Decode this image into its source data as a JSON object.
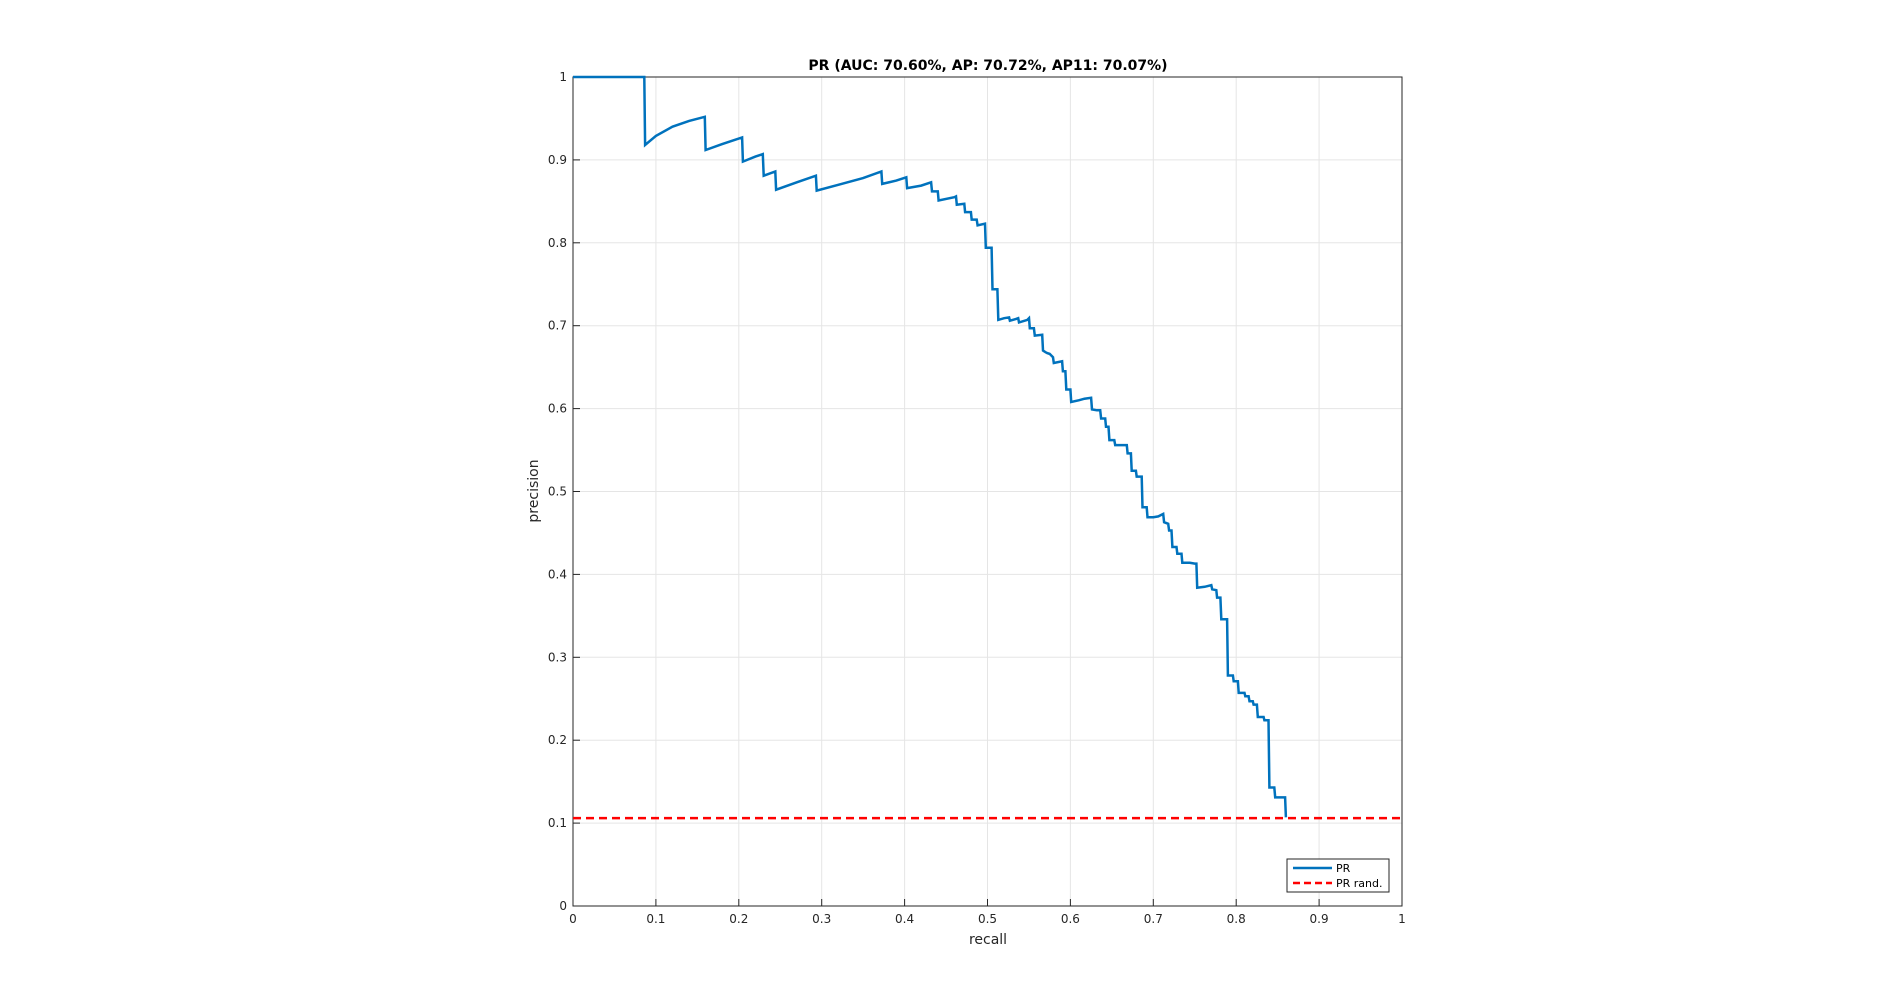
{
  "chart_data": {
    "type": "line",
    "title": "PR (AUC: 70.60%, AP: 70.72%, AP11: 70.07%)",
    "xlabel": "recall",
    "ylabel": "precision",
    "xlim": [
      0,
      1
    ],
    "ylim": [
      0,
      1
    ],
    "grid": true,
    "legend_position": "bottom-right",
    "xticks": [
      "0",
      "0.1",
      "0.2",
      "0.3",
      "0.4",
      "0.5",
      "0.6",
      "0.7",
      "0.8",
      "0.9",
      "1"
    ],
    "yticks": [
      "0",
      "0.1",
      "0.2",
      "0.3",
      "0.4",
      "0.5",
      "0.6",
      "0.7",
      "0.8",
      "0.9",
      "1"
    ],
    "series": [
      {
        "name": "PR",
        "color": "#0072BD",
        "style": "solid",
        "points": [
          [
            0,
            1.0
          ],
          [
            0.086,
            1.0
          ],
          [
            0.087,
            0.918
          ],
          [
            0.1,
            0.929
          ],
          [
            0.12,
            0.94
          ],
          [
            0.14,
            0.947
          ],
          [
            0.159,
            0.952
          ],
          [
            0.16,
            0.912
          ],
          [
            0.18,
            0.919
          ],
          [
            0.204,
            0.927
          ],
          [
            0.205,
            0.898
          ],
          [
            0.22,
            0.904
          ],
          [
            0.229,
            0.907
          ],
          [
            0.23,
            0.881
          ],
          [
            0.244,
            0.886
          ],
          [
            0.245,
            0.864
          ],
          [
            0.27,
            0.873
          ],
          [
            0.293,
            0.881
          ],
          [
            0.294,
            0.863
          ],
          [
            0.32,
            0.87
          ],
          [
            0.35,
            0.878
          ],
          [
            0.372,
            0.886
          ],
          [
            0.373,
            0.871
          ],
          [
            0.39,
            0.875
          ],
          [
            0.402,
            0.879
          ],
          [
            0.403,
            0.866
          ],
          [
            0.42,
            0.869
          ],
          [
            0.432,
            0.873
          ],
          [
            0.433,
            0.862
          ],
          [
            0.44,
            0.862
          ],
          [
            0.441,
            0.851
          ],
          [
            0.46,
            0.855
          ],
          [
            0.462,
            0.856
          ],
          [
            0.463,
            0.846
          ],
          [
            0.472,
            0.847
          ],
          [
            0.473,
            0.837
          ],
          [
            0.48,
            0.837
          ],
          [
            0.481,
            0.828
          ],
          [
            0.487,
            0.828
          ],
          [
            0.488,
            0.821
          ],
          [
            0.497,
            0.823
          ],
          [
            0.498,
            0.794
          ],
          [
            0.505,
            0.794
          ],
          [
            0.506,
            0.744
          ],
          [
            0.512,
            0.744
          ],
          [
            0.513,
            0.707
          ],
          [
            0.52,
            0.709
          ],
          [
            0.526,
            0.71
          ],
          [
            0.527,
            0.706
          ],
          [
            0.534,
            0.708
          ],
          [
            0.537,
            0.709
          ],
          [
            0.538,
            0.704
          ],
          [
            0.548,
            0.707
          ],
          [
            0.55,
            0.709
          ],
          [
            0.551,
            0.697
          ],
          [
            0.556,
            0.697
          ],
          [
            0.557,
            0.688
          ],
          [
            0.566,
            0.689
          ],
          [
            0.567,
            0.67
          ],
          [
            0.57,
            0.668
          ],
          [
            0.572,
            0.667
          ],
          [
            0.575,
            0.666
          ],
          [
            0.577,
            0.664
          ],
          [
            0.579,
            0.662
          ],
          [
            0.58,
            0.655
          ],
          [
            0.59,
            0.657
          ],
          [
            0.591,
            0.645
          ],
          [
            0.594,
            0.645
          ],
          [
            0.595,
            0.623
          ],
          [
            0.6,
            0.623
          ],
          [
            0.601,
            0.608
          ],
          [
            0.61,
            0.61
          ],
          [
            0.617,
            0.612
          ],
          [
            0.625,
            0.613
          ],
          [
            0.626,
            0.599
          ],
          [
            0.632,
            0.598
          ],
          [
            0.636,
            0.598
          ],
          [
            0.637,
            0.588
          ],
          [
            0.642,
            0.588
          ],
          [
            0.643,
            0.578
          ],
          [
            0.646,
            0.578
          ],
          [
            0.647,
            0.562
          ],
          [
            0.653,
            0.562
          ],
          [
            0.654,
            0.556
          ],
          [
            0.66,
            0.556
          ],
          [
            0.668,
            0.556
          ],
          [
            0.669,
            0.546
          ],
          [
            0.673,
            0.546
          ],
          [
            0.674,
            0.525
          ],
          [
            0.679,
            0.525
          ],
          [
            0.68,
            0.518
          ],
          [
            0.686,
            0.518
          ],
          [
            0.687,
            0.481
          ],
          [
            0.692,
            0.481
          ],
          [
            0.693,
            0.469
          ],
          [
            0.7,
            0.469
          ],
          [
            0.706,
            0.47
          ],
          [
            0.712,
            0.473
          ],
          [
            0.713,
            0.463
          ],
          [
            0.718,
            0.461
          ],
          [
            0.719,
            0.453
          ],
          [
            0.722,
            0.453
          ],
          [
            0.723,
            0.433
          ],
          [
            0.728,
            0.433
          ],
          [
            0.729,
            0.425
          ],
          [
            0.734,
            0.425
          ],
          [
            0.735,
            0.414
          ],
          [
            0.744,
            0.414
          ],
          [
            0.75,
            0.413
          ],
          [
            0.752,
            0.413
          ],
          [
            0.753,
            0.384
          ],
          [
            0.762,
            0.385
          ],
          [
            0.77,
            0.387
          ],
          [
            0.771,
            0.382
          ],
          [
            0.776,
            0.381
          ],
          [
            0.777,
            0.372
          ],
          [
            0.781,
            0.372
          ],
          [
            0.782,
            0.346
          ],
          [
            0.789,
            0.346
          ],
          [
            0.79,
            0.278
          ],
          [
            0.796,
            0.278
          ],
          [
            0.797,
            0.271
          ],
          [
            0.802,
            0.271
          ],
          [
            0.803,
            0.257
          ],
          [
            0.81,
            0.257
          ],
          [
            0.811,
            0.253
          ],
          [
            0.815,
            0.253
          ],
          [
            0.816,
            0.247
          ],
          [
            0.82,
            0.247
          ],
          [
            0.821,
            0.243
          ],
          [
            0.825,
            0.243
          ],
          [
            0.826,
            0.228
          ],
          [
            0.833,
            0.228
          ],
          [
            0.834,
            0.224
          ],
          [
            0.838,
            0.224
          ],
          [
            0.839,
            0.224
          ],
          [
            0.84,
            0.143
          ],
          [
            0.846,
            0.143
          ],
          [
            0.847,
            0.131
          ],
          [
            0.859,
            0.131
          ],
          [
            0.86,
            0.107
          ]
        ]
      },
      {
        "name": "PR rand.",
        "color": "#FF0000",
        "style": "dashed",
        "points": [
          [
            0,
            0.106
          ],
          [
            1,
            0.106
          ]
        ]
      }
    ]
  }
}
